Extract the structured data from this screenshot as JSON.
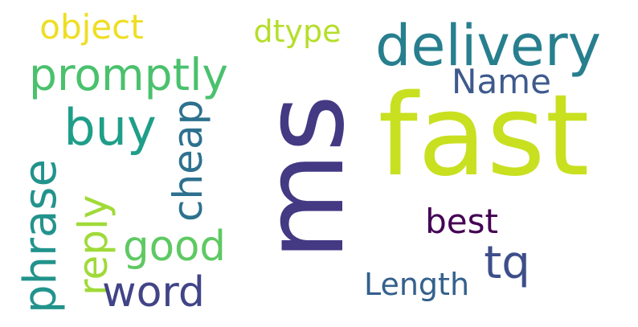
{
  "words": [
    {
      "key": "ms",
      "text": "ms",
      "color": "#443983"
    },
    {
      "key": "fast",
      "text": "fast",
      "color": "#c8e020"
    },
    {
      "key": "delivery",
      "text": "delivery",
      "color": "#277f8e"
    },
    {
      "key": "promptly",
      "text": "promptly",
      "color": "#4ac16d"
    },
    {
      "key": "buy",
      "text": "buy",
      "color": "#1f9e89"
    },
    {
      "key": "object",
      "text": "object",
      "color": "#eede23"
    },
    {
      "key": "dtype",
      "text": "dtype",
      "color": "#b5de2b"
    },
    {
      "key": "name",
      "text": "Name",
      "color": "#3e5a8d"
    },
    {
      "key": "cheap",
      "text": "cheap",
      "color": "#2d718e"
    },
    {
      "key": "phrase",
      "text": "phrase",
      "color": "#22938c"
    },
    {
      "key": "reply",
      "text": "reply",
      "color": "#a0da39"
    },
    {
      "key": "good",
      "text": "good",
      "color": "#5ec962"
    },
    {
      "key": "best",
      "text": "best",
      "color": "#440154"
    },
    {
      "key": "tq",
      "text": "tq",
      "color": "#3d4e8a"
    },
    {
      "key": "word",
      "text": "word",
      "color": "#414487"
    },
    {
      "key": "length",
      "text": "Length",
      "color": "#34608d"
    }
  ]
}
